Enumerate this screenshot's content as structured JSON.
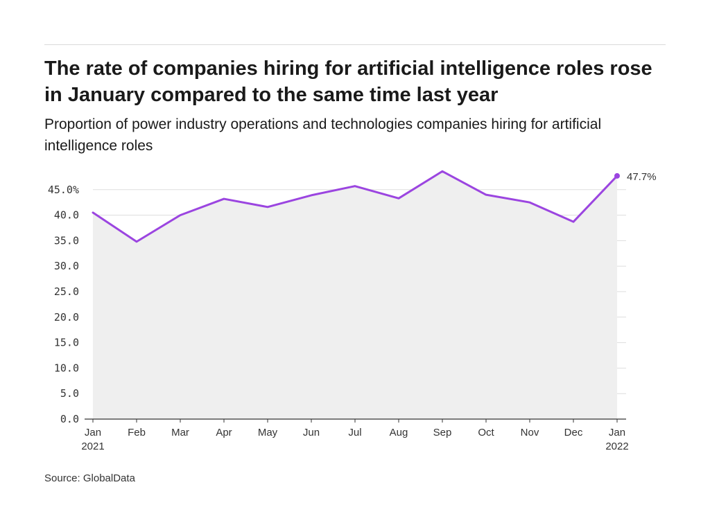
{
  "title": "The rate of companies hiring for artificial intelligence roles rose in January compared to the same time last year",
  "subtitle": "Proportion of power industry operations and technologies companies hiring for artificial intelligence roles",
  "source": "Source: GlobalData",
  "colors": {
    "line": "#9b45e0",
    "area": "#efefef",
    "grid": "#dddddd",
    "axis": "#333333"
  },
  "chart_data": {
    "type": "area",
    "categories": [
      "Jan 2021",
      "Feb",
      "Mar",
      "Apr",
      "May",
      "Jun",
      "Jul",
      "Aug",
      "Sep",
      "Oct",
      "Nov",
      "Dec",
      "Jan 2022"
    ],
    "x_tick_labels": [
      [
        "Jan",
        "2021"
      ],
      [
        "Feb"
      ],
      [
        "Mar"
      ],
      [
        "Apr"
      ],
      [
        "May"
      ],
      [
        "Jun"
      ],
      [
        "Jul"
      ],
      [
        "Aug"
      ],
      [
        "Sep"
      ],
      [
        "Oct"
      ],
      [
        "Nov"
      ],
      [
        "Dec"
      ],
      [
        "Jan",
        "2022"
      ]
    ],
    "series": [
      {
        "values": [
          40.5,
          34.8,
          40.0,
          43.2,
          41.6,
          43.9,
          45.7,
          43.3,
          48.6,
          44.0,
          42.5,
          38.7,
          47.7
        ]
      }
    ],
    "y_ticks": [
      "0.0",
      "5.0",
      "10.0",
      "15.0",
      "20.0",
      "25.0",
      "30.0",
      "35.0",
      "40.0",
      "45.0%"
    ],
    "y_tick_values": [
      0,
      5,
      10,
      15,
      20,
      25,
      30,
      35,
      40,
      45
    ],
    "ylim": [
      0,
      50
    ],
    "grid": true,
    "end_label": "47.7%",
    "xlabel": "",
    "ylabel": ""
  }
}
